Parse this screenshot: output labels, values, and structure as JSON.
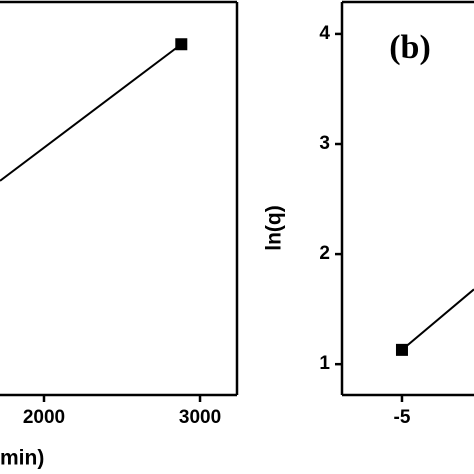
{
  "chart_data": [
    {
      "type": "line",
      "xlabel": "min)",
      "x": [
        1718,
        2880
      ],
      "series": [
        {
          "style": "line",
          "color": "#000000",
          "values": [
            218,
            357
          ]
        },
        {
          "style": "marker",
          "color": "#000000",
          "values": [
            null,
            357
          ]
        }
      ],
      "xlim": [
        1718,
        3237
      ],
      "xticks": [
        2000,
        3000
      ],
      "ylim": [
        0,
        400
      ]
    },
    {
      "type": "line",
      "ylabel": "ln(q)",
      "annotation": "(b)",
      "x": [
        -5,
        -2.43
      ],
      "series": [
        {
          "style": "line",
          "color": "#000000",
          "values": [
            1.13,
            1.68
          ]
        },
        {
          "style": "marker",
          "color": "#000000",
          "values": [
            1.13,
            null
          ]
        }
      ],
      "xlim": [
        -7.14,
        -2.43
      ],
      "xticks": [
        -5
      ],
      "ylim": [
        0.72,
        4.29
      ],
      "yticks": [
        1,
        2,
        3,
        4
      ]
    }
  ]
}
